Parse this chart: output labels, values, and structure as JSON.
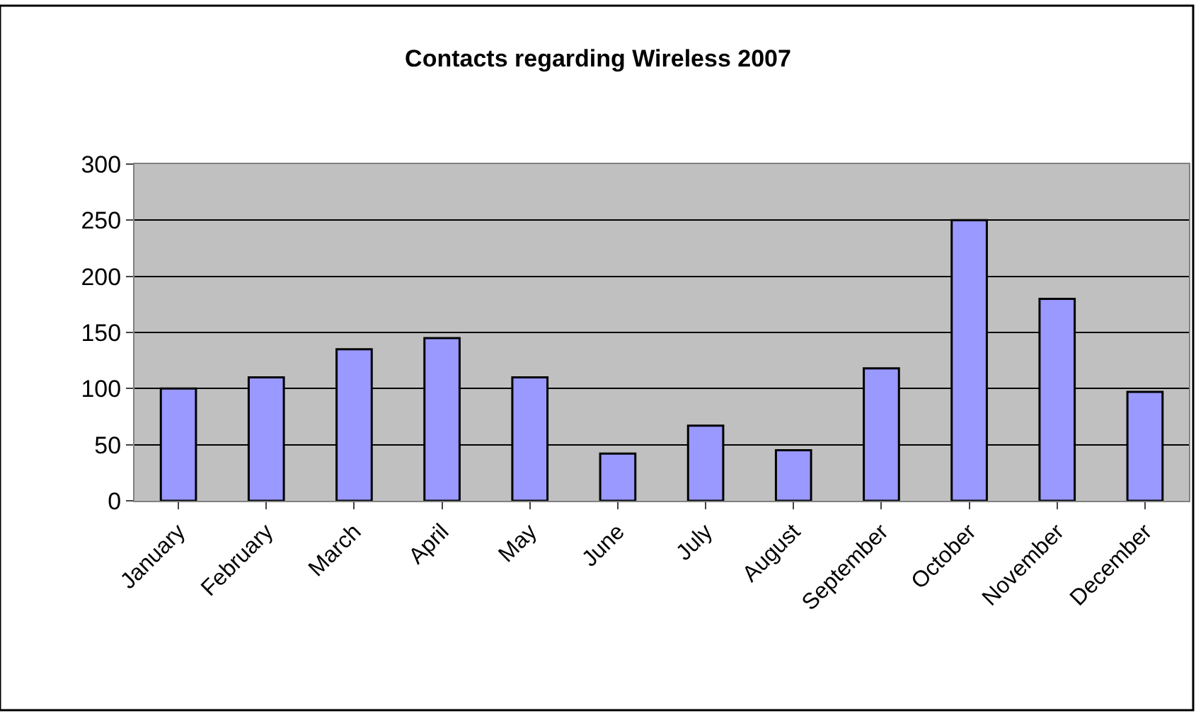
{
  "chart_data": {
    "type": "bar",
    "title": "Contacts regarding Wireless 2007",
    "categories": [
      "January",
      "February",
      "March",
      "April",
      "May",
      "June",
      "July",
      "August",
      "September",
      "October",
      "November",
      "December"
    ],
    "values": [
      100,
      110,
      135,
      145,
      110,
      42,
      67,
      45,
      118,
      250,
      180,
      97
    ],
    "color": "#9999ff",
    "ylim": [
      0,
      300
    ],
    "yticks": [
      0,
      50,
      100,
      150,
      200,
      250,
      300
    ],
    "grid": "y",
    "legend": false
  }
}
